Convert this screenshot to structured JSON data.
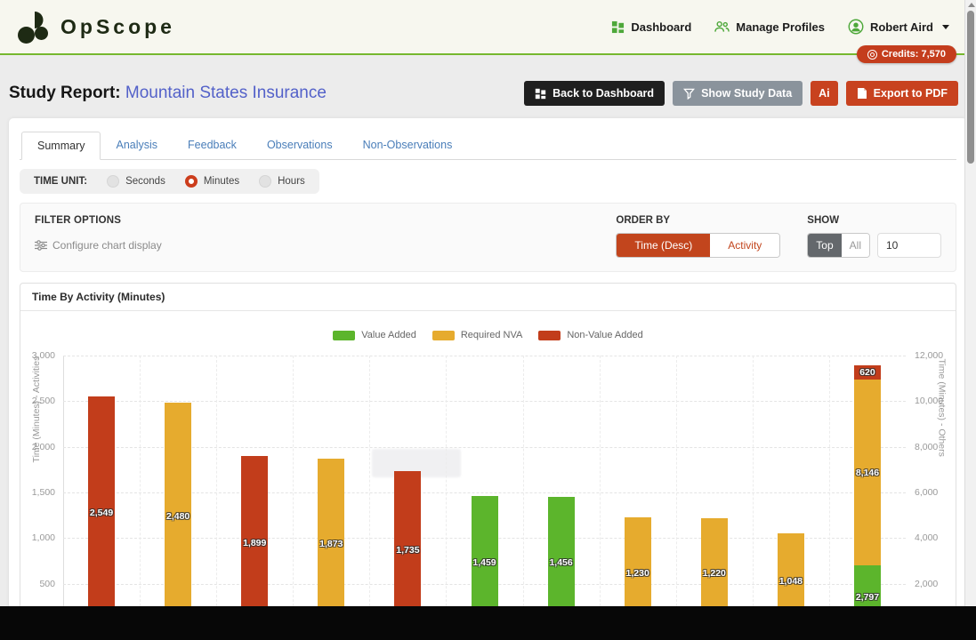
{
  "nav": {
    "brand": "OpScope",
    "links": [
      {
        "label": "Dashboard"
      },
      {
        "label": "Manage Profiles"
      }
    ],
    "user": {
      "name": "Robert Aird"
    },
    "credits": "Credits: 7,570"
  },
  "header": {
    "title_prefix": "Study Report:",
    "title": "Mountain States Insurance",
    "buttons": {
      "back": "Back to Dashboard",
      "show_data": "Show Study Data",
      "ai": "Ai",
      "export": "Export to PDF"
    }
  },
  "tabs": [
    "Summary",
    "Analysis",
    "Feedback",
    "Observations",
    "Non-Observations"
  ],
  "active_tab": "Summary",
  "time_unit": {
    "label": "TIME UNIT:",
    "options": [
      "Seconds",
      "Minutes",
      "Hours"
    ],
    "selected": "Minutes"
  },
  "filters": {
    "title": "FILTER OPTIONS",
    "configure_label": "Configure chart display",
    "order_by": {
      "label": "ORDER BY",
      "options": [
        "Time (Desc)",
        "Activity"
      ],
      "selected": "Time (Desc)"
    },
    "show": {
      "label": "SHOW",
      "options": [
        "Top",
        "All"
      ],
      "selected": "Top",
      "count": "10"
    }
  },
  "chart_data": {
    "type": "bar",
    "title": "Time By Activity (Minutes)",
    "legend": [
      {
        "name": "Value Added",
        "color": "#5cb52c"
      },
      {
        "name": "Required NVA",
        "color": "#e6ab2e"
      },
      {
        "name": "Non-Value Added",
        "color": "#c23d1b"
      }
    ],
    "left_axis": {
      "label": "Time (Minutes) - Activities",
      "range": [
        0,
        3000
      ],
      "tick_step": 500,
      "ticks": [
        "500",
        "1,000",
        "1,500",
        "2,000",
        "2,500",
        "3,000"
      ]
    },
    "right_axis": {
      "label": "Time (Minutes) - Others",
      "range": [
        0,
        12000
      ],
      "tick_step": 2000,
      "ticks": [
        "2,000",
        "4,000",
        "6,000",
        "8,000",
        "10,000",
        "12,000"
      ]
    },
    "grid": true,
    "legend_position": "top",
    "bars": [
      {
        "series": "Non-Value Added",
        "value": 2549,
        "label": "2,549"
      },
      {
        "series": "Required NVA",
        "value": 2480,
        "label": "2,480"
      },
      {
        "series": "Non-Value Added",
        "value": 1899,
        "label": "1,899"
      },
      {
        "series": "Required NVA",
        "value": 1873,
        "label": "1,873"
      },
      {
        "series": "Non-Value Added",
        "value": 1735,
        "label": "1,735"
      },
      {
        "series": "Value Added",
        "value": 1459,
        "label": "1,459"
      },
      {
        "series": "Value Added",
        "value": 1456,
        "label": "1,456"
      },
      {
        "series": "Required NVA",
        "value": 1230,
        "label": "1,230"
      },
      {
        "series": "Required NVA",
        "value": 1220,
        "label": "1,220"
      },
      {
        "series": "Required NVA",
        "value": 1048,
        "label": "1,048"
      },
      {
        "stacked": true,
        "axis": "right",
        "segments": [
          {
            "series": "Value Added",
            "value": 2797,
            "label": "2,797"
          },
          {
            "series": "Required NVA",
            "value": 8146,
            "label": "8,146"
          },
          {
            "series": "Non-Value Added",
            "value": 620,
            "label": "620"
          }
        ]
      }
    ]
  }
}
